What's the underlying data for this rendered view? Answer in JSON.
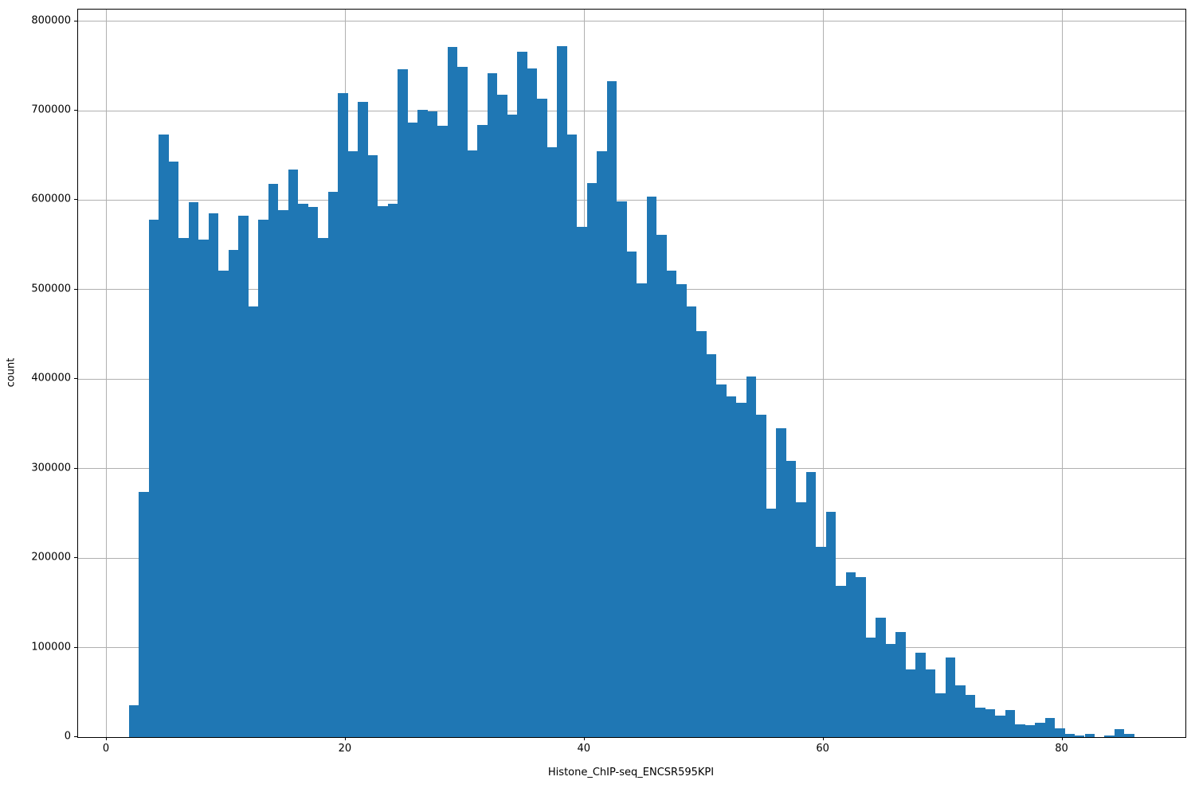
{
  "figure": {
    "background": "#ffffff"
  },
  "chart_data": {
    "type": "bar",
    "subtype": "histogram",
    "title": "",
    "xlabel": "Histone_ChIP-seq_ENCSR595KPI",
    "ylabel": "count",
    "bar_color": "#1f77b4",
    "grid_color": "#b0b0b0",
    "grid": true,
    "legend": false,
    "xlim": [
      -2.4,
      90.3
    ],
    "ylim": [
      0,
      813000
    ],
    "xticks": [
      0,
      20,
      40,
      60,
      80
    ],
    "xtick_labels": [
      "0",
      "20",
      "40",
      "60",
      "80"
    ],
    "yticks": [
      0,
      100000,
      200000,
      300000,
      400000,
      500000,
      600000,
      700000,
      800000
    ],
    "ytick_labels": [
      "0",
      "100000",
      "200000",
      "300000",
      "400000",
      "500000",
      "600000",
      "700000",
      "800000"
    ],
    "bin_start": 1.867,
    "bin_width": 0.8333,
    "counts": [
      36000,
      274000,
      578000,
      673000,
      643000,
      558000,
      598000,
      556000,
      585000,
      521000,
      544000,
      583000,
      481000,
      578000,
      618000,
      589000,
      634000,
      596000,
      592000,
      558000,
      609000,
      720000,
      655000,
      710000,
      650000,
      593000,
      596000,
      746000,
      687000,
      701000,
      699000,
      683000,
      771000,
      749000,
      656000,
      684000,
      742000,
      718000,
      696000,
      766000,
      747000,
      713000,
      659000,
      772000,
      673000,
      570000,
      619000,
      655000,
      733000,
      599000,
      543000,
      507000,
      604000,
      561000,
      521000,
      506000,
      481000,
      454000,
      428000,
      394000,
      381000,
      374000,
      403000,
      360000,
      255000,
      345000,
      309000,
      262000,
      296000,
      213000,
      252000,
      169000,
      184000,
      179000,
      111000,
      133000,
      104000,
      117000,
      76000,
      94000,
      76000,
      49000,
      89000,
      58000,
      47000,
      33000,
      31000,
      24000,
      30000,
      14000,
      13000,
      16000,
      21000,
      10000,
      4000,
      2000,
      4000,
      0,
      2000,
      9000,
      4000
    ]
  }
}
